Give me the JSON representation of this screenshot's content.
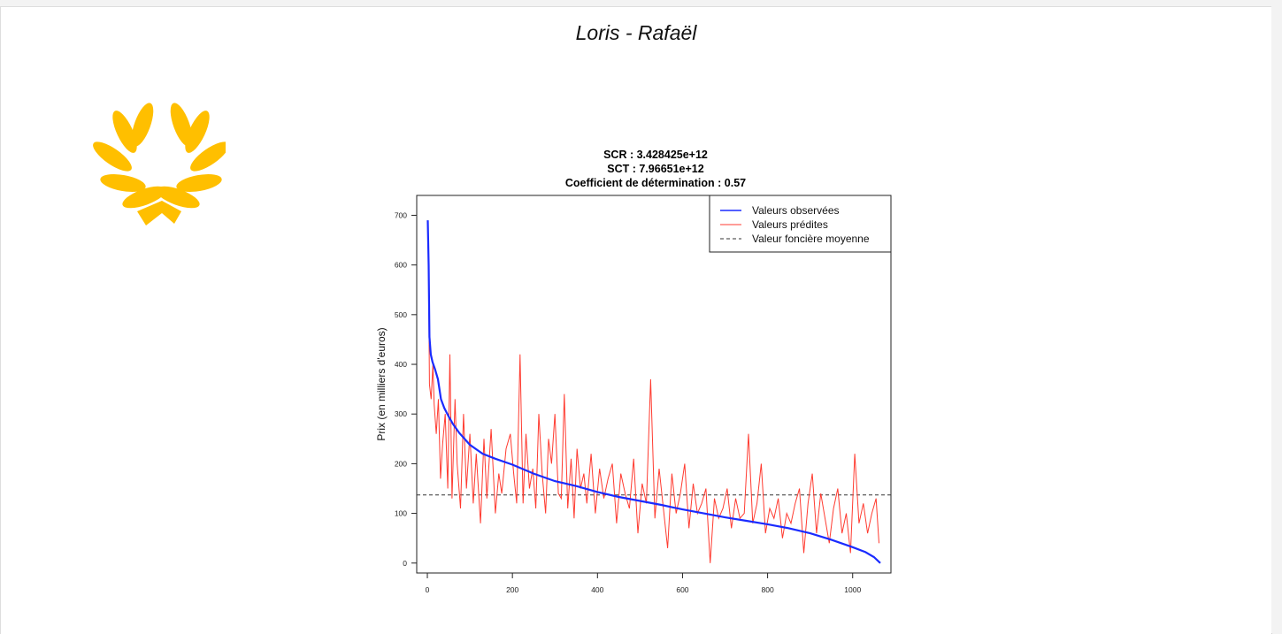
{
  "header": {
    "title": "Loris - Rafaël"
  },
  "logo": {
    "icon": "laurel-wreath-icon",
    "color": "#FFBF00"
  },
  "chart_data": {
    "type": "line",
    "title_lines": [
      "SCR :  3.428425e+12",
      "SCT :  7.96651e+12",
      "Coefficient de détermination :  0.57"
    ],
    "xlabel": "",
    "ylabel": "Prix (en milliers d'euros)",
    "xlim": [
      -25,
      1090
    ],
    "ylim": [
      -20,
      740
    ],
    "x_ticks": [
      0,
      200,
      400,
      600,
      800,
      1000
    ],
    "y_ticks": [
      0,
      100,
      200,
      300,
      400,
      500,
      600,
      700
    ],
    "legend": {
      "position": "top-right",
      "entries": [
        "Valeurs observées",
        "Valeurs prédites",
        "Valeur foncière moyenne"
      ]
    },
    "colors": {
      "observed": "#1a2bff",
      "predicted": "#ff3b30",
      "mean": "#333333"
    },
    "mean_value": 137,
    "series": [
      {
        "name": "Valeurs observées",
        "x": [
          1,
          3,
          5,
          8,
          12,
          18,
          25,
          32,
          40,
          50,
          60,
          75,
          100,
          130,
          160,
          200,
          250,
          300,
          350,
          400,
          450,
          500,
          550,
          600,
          650,
          700,
          750,
          800,
          850,
          900,
          950,
          1000,
          1030,
          1050,
          1065
        ],
        "values": [
          690,
          600,
          455,
          420,
          405,
          390,
          370,
          330,
          312,
          295,
          280,
          262,
          238,
          220,
          210,
          198,
          180,
          165,
          155,
          143,
          133,
          125,
          117,
          108,
          100,
          92,
          85,
          78,
          70,
          60,
          47,
          32,
          22,
          12,
          0
        ]
      },
      {
        "name": "Valeurs prédites",
        "x": [
          3,
          5,
          9,
          13,
          16,
          21,
          26,
          31,
          36,
          42,
          48,
          53,
          58,
          65,
          70,
          78,
          85,
          92,
          100,
          108,
          115,
          125,
          133,
          140,
          150,
          160,
          168,
          175,
          185,
          195,
          203,
          210,
          218,
          225,
          232,
          240,
          248,
          255,
          262,
          270,
          278,
          285,
          292,
          300,
          308,
          315,
          322,
          330,
          338,
          345,
          352,
          360,
          368,
          375,
          385,
          395,
          405,
          415,
          425,
          435,
          445,
          455,
          465,
          475,
          485,
          495,
          505,
          515,
          525,
          535,
          545,
          555,
          565,
          575,
          585,
          595,
          605,
          615,
          625,
          635,
          645,
          655,
          665,
          675,
          685,
          695,
          705,
          715,
          725,
          735,
          745,
          755,
          765,
          775,
          785,
          795,
          805,
          815,
          825,
          835,
          845,
          855,
          865,
          875,
          885,
          895,
          905,
          915,
          925,
          935,
          945,
          955,
          965,
          975,
          985,
          995,
          1005,
          1015,
          1025,
          1035,
          1045,
          1055,
          1062
        ],
        "values": [
          560,
          360,
          330,
          400,
          320,
          260,
          330,
          170,
          240,
          300,
          150,
          420,
          130,
          330,
          200,
          110,
          300,
          150,
          260,
          120,
          220,
          80,
          250,
          130,
          270,
          100,
          180,
          140,
          230,
          260,
          180,
          120,
          420,
          120,
          260,
          150,
          190,
          110,
          300,
          180,
          100,
          250,
          200,
          300,
          140,
          130,
          340,
          110,
          210,
          90,
          230,
          150,
          180,
          120,
          220,
          100,
          190,
          130,
          170,
          200,
          80,
          180,
          140,
          110,
          210,
          60,
          160,
          120,
          370,
          90,
          190,
          110,
          30,
          180,
          100,
          140,
          200,
          70,
          160,
          100,
          120,
          150,
          0,
          130,
          90,
          110,
          150,
          70,
          130,
          90,
          100,
          260,
          80,
          120,
          200,
          60,
          110,
          90,
          130,
          50,
          100,
          80,
          120,
          150,
          20,
          120,
          180,
          60,
          140,
          90,
          40,
          110,
          150,
          60,
          100,
          20,
          220,
          80,
          120,
          60,
          100,
          130,
          40
        ]
      }
    ]
  }
}
